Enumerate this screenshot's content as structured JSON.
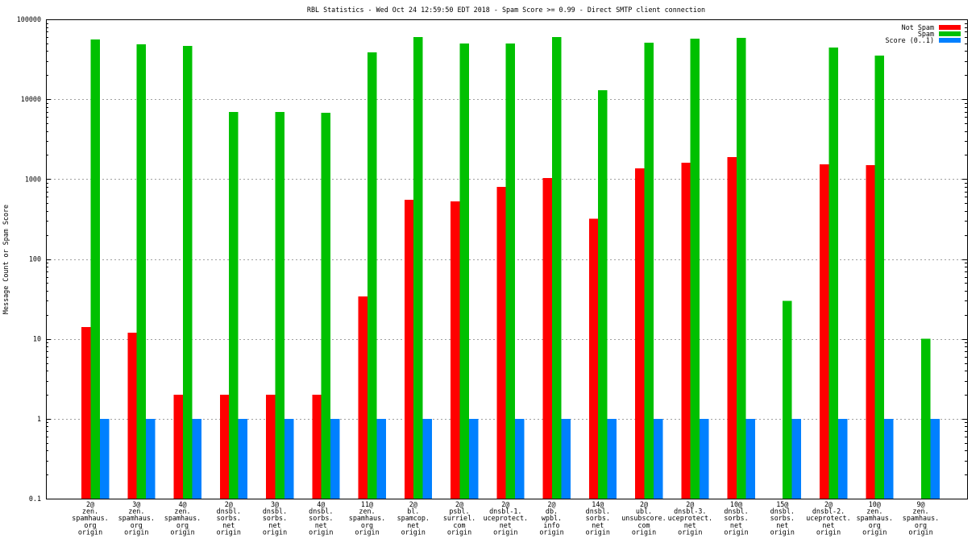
{
  "chart_data": {
    "type": "bar",
    "title": "RBL Statistics - Wed Oct 24 12:59:50 EDT 2018 - Spam Score >= 0.99 - Direct SMTP client connection",
    "xlabel": "",
    "ylabel": "Message Count or Spam Score",
    "yscale": "log",
    "ylim": [
      0.1,
      100000
    ],
    "yticks": [
      100000,
      10000,
      1000,
      100,
      10,
      1,
      0.1
    ],
    "ytick_labels": [
      "100000",
      "10000",
      "1000",
      "100",
      "10",
      "1",
      "0.1"
    ],
    "grid": true,
    "legend": "top-right",
    "categories": [
      [
        "2@",
        "zen.",
        "spamhaus.",
        "org",
        "origin"
      ],
      [
        "3@",
        "zen.",
        "spamhaus.",
        "org",
        "origin"
      ],
      [
        "4@",
        "zen.",
        "spamhaus.",
        "org",
        "origin"
      ],
      [
        "2@",
        "dnsbl.",
        "sorbs.",
        "net",
        "origin"
      ],
      [
        "3@",
        "dnsbl.",
        "sorbs.",
        "net",
        "origin"
      ],
      [
        "4@",
        "dnsbl.",
        "sorbs.",
        "net",
        "origin"
      ],
      [
        "11@",
        "zen.",
        "spamhaus.",
        "org",
        "origin"
      ],
      [
        "2@",
        "bl.",
        "spamcop.",
        "net",
        "origin"
      ],
      [
        "2@",
        "psbl.",
        "surriel.",
        "com",
        "origin"
      ],
      [
        "2@",
        "dnsbl-1.",
        "uceprotect.",
        "net",
        "origin"
      ],
      [
        "2@",
        "db.",
        "wpbl.",
        "info",
        "origin"
      ],
      [
        "14@",
        "dnsbl.",
        "sorbs.",
        "net",
        "origin"
      ],
      [
        "2@",
        "ubl.",
        "unsubscore.",
        "com",
        "origin"
      ],
      [
        "2@",
        "dnsbl-3.",
        "uceprotect.",
        "net",
        "origin"
      ],
      [
        "10@",
        "dnsbl.",
        "sorbs.",
        "net",
        "origin"
      ],
      [
        "15@",
        "dnsbl.",
        "sorbs.",
        "net",
        "origin"
      ],
      [
        "2@",
        "dnsbl-2.",
        "uceprotect.",
        "net",
        "origin"
      ],
      [
        "10@",
        "zen.",
        "spamhaus.",
        "org",
        "origin"
      ],
      [
        "9@",
        "zen.",
        "spamhaus.",
        "org",
        "origin"
      ]
    ],
    "series": [
      {
        "name": "Not Spam",
        "color": "#ff0000",
        "values": [
          14,
          12,
          2,
          2,
          2,
          2,
          34,
          550,
          525,
          800,
          1030,
          320,
          1360,
          1600,
          1890,
          null,
          1530,
          1500,
          null
        ]
      },
      {
        "name": "Spam",
        "color": "#00c000",
        "values": [
          56000,
          48700,
          46500,
          6900,
          6900,
          6800,
          38600,
          60000,
          50000,
          50000,
          60000,
          13000,
          51000,
          57000,
          58500,
          30,
          44400,
          35200,
          10
        ]
      },
      {
        "name": "Score (0..1)",
        "color": "#0080ff",
        "values": [
          1,
          1,
          1,
          1,
          1,
          1,
          1,
          1,
          1,
          1,
          1,
          1,
          1,
          1,
          1,
          1,
          1,
          1,
          1
        ]
      }
    ]
  }
}
